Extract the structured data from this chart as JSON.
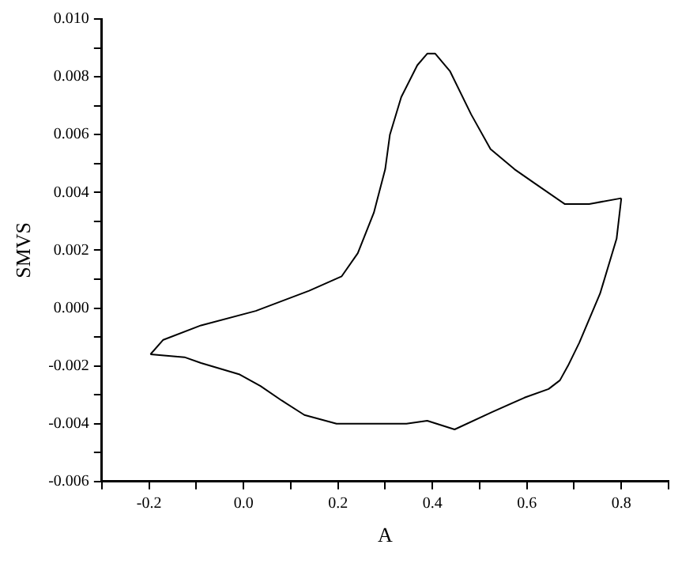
{
  "chart_data": {
    "type": "line",
    "xlabel": "A",
    "ylabel": "SMVS",
    "xlim": [
      -0.3,
      0.9
    ],
    "ylim": [
      -0.006,
      0.01
    ],
    "xticks": [
      {
        "value": -0.3,
        "label": null
      },
      -0.2,
      {
        "value": -0.1,
        "label": null
      },
      {
        "value": 0,
        "label": "0.0"
      },
      {
        "value": 0.1,
        "label": null
      },
      0.2,
      {
        "value": 0.3,
        "label": null
      },
      0.4,
      {
        "value": 0.5,
        "label": null
      },
      0.6,
      {
        "value": 0.7,
        "label": null
      },
      0.8,
      {
        "value": 0.9,
        "label": null
      }
    ],
    "yticks": [
      {
        "value": -0.006,
        "label": "-0.006"
      },
      {
        "value": -0.005,
        "label": null
      },
      {
        "value": -0.004,
        "label": "-0.004"
      },
      {
        "value": -0.003,
        "label": null
      },
      {
        "value": -0.002,
        "label": "-0.002"
      },
      {
        "value": -0.001,
        "label": null
      },
      {
        "value": 0,
        "label": "0.000"
      },
      {
        "value": 0.001,
        "label": null
      },
      {
        "value": 0.002,
        "label": "0.002"
      },
      {
        "value": 0.003,
        "label": null
      },
      {
        "value": 0.004,
        "label": "0.004"
      },
      {
        "value": 0.005,
        "label": null
      },
      {
        "value": 0.006,
        "label": "0.006"
      },
      {
        "value": 0.007,
        "label": null
      },
      {
        "value": 0.008,
        "label": "0.008"
      },
      {
        "value": 0.009,
        "label": null
      },
      {
        "value": 0.01,
        "label": "0.010"
      }
    ],
    "grid": false,
    "legend": false,
    "marker": "none",
    "line_style": "solid",
    "series": [
      {
        "color": "#000000",
        "x": [
          -0.197,
          -0.17,
          -0.09,
          0.026,
          0.139,
          0.208,
          0.242,
          0.276,
          0.3,
          0.31,
          0.334,
          0.368,
          0.389,
          0.406,
          0.437,
          0.482,
          0.523,
          0.574,
          0.618,
          0.68,
          0.732,
          0.8
        ],
        "values": [
          -0.0016,
          -0.0011,
          -0.0006,
          -0.0001,
          0.0006,
          0.0011,
          0.0019,
          0.0033,
          0.0048,
          0.006,
          0.0073,
          0.0084,
          0.0088,
          0.0088,
          0.0082,
          0.0067,
          0.0055,
          0.0048,
          0.0043,
          0.0036,
          0.0036,
          0.0038
        ]
      },
      {
        "color": "#000000",
        "x": [
          0.8,
          0.79,
          0.755,
          0.711,
          0.687,
          0.67,
          0.646,
          0.595,
          0.526,
          0.447,
          0.389,
          0.345,
          0.197,
          0.129,
          0.081,
          0.036,
          -0.008,
          -0.09,
          -0.125,
          -0.197
        ],
        "values": [
          0.0038,
          0.0024,
          0.0005,
          -0.0012,
          -0.002,
          -0.0025,
          -0.0028,
          -0.0031,
          -0.0036,
          -0.0042,
          -0.0039,
          -0.004,
          -0.004,
          -0.0037,
          -0.0032,
          -0.0027,
          -0.0023,
          -0.0019,
          -0.0017,
          -0.0016
        ]
      }
    ]
  }
}
